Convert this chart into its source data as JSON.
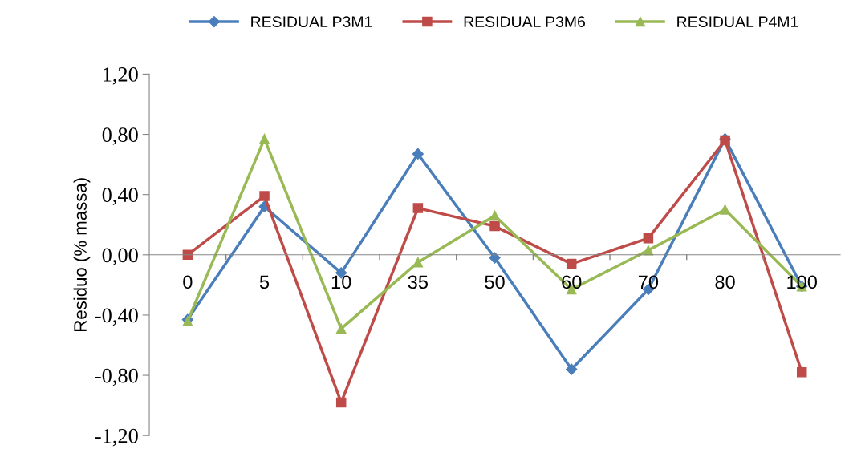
{
  "chart_data": {
    "type": "line",
    "ylabel": "Residuo (% massa)",
    "categories": [
      "0",
      "5",
      "10",
      "35",
      "50",
      "60",
      "70",
      "80",
      "100"
    ],
    "series": [
      {
        "name": "RESIDUAL P3M1",
        "color": "#4a7ebb",
        "marker": "diamond",
        "values": [
          -0.43,
          0.32,
          -0.12,
          0.67,
          -0.02,
          -0.76,
          -0.23,
          0.77,
          -0.21
        ]
      },
      {
        "name": "RESIDUAL P3M6",
        "color": "#be4b48",
        "marker": "square",
        "values": [
          0.0,
          0.39,
          -0.98,
          0.31,
          0.19,
          -0.06,
          0.11,
          0.76,
          -0.78
        ]
      },
      {
        "name": "RESIDUAL P4M1",
        "color": "#98b954",
        "marker": "triangle",
        "values": [
          -0.44,
          0.77,
          -0.49,
          -0.05,
          0.26,
          -0.23,
          0.03,
          0.3,
          -0.21
        ]
      }
    ],
    "ylim": [
      -1.2,
      1.2
    ],
    "yticks": [
      {
        "value": -1.2,
        "label": "-1,20"
      },
      {
        "value": -0.8,
        "label": "-0,80"
      },
      {
        "value": -0.4,
        "label": "-0,40"
      },
      {
        "value": 0,
        "label": "0,00"
      },
      {
        "value": 0.4,
        "label": "0,40"
      },
      {
        "value": 0.8,
        "label": "0,80"
      },
      {
        "value": 1.2,
        "label": "1,20"
      }
    ],
    "grid": false,
    "legend": "top",
    "line_style": "solid"
  }
}
